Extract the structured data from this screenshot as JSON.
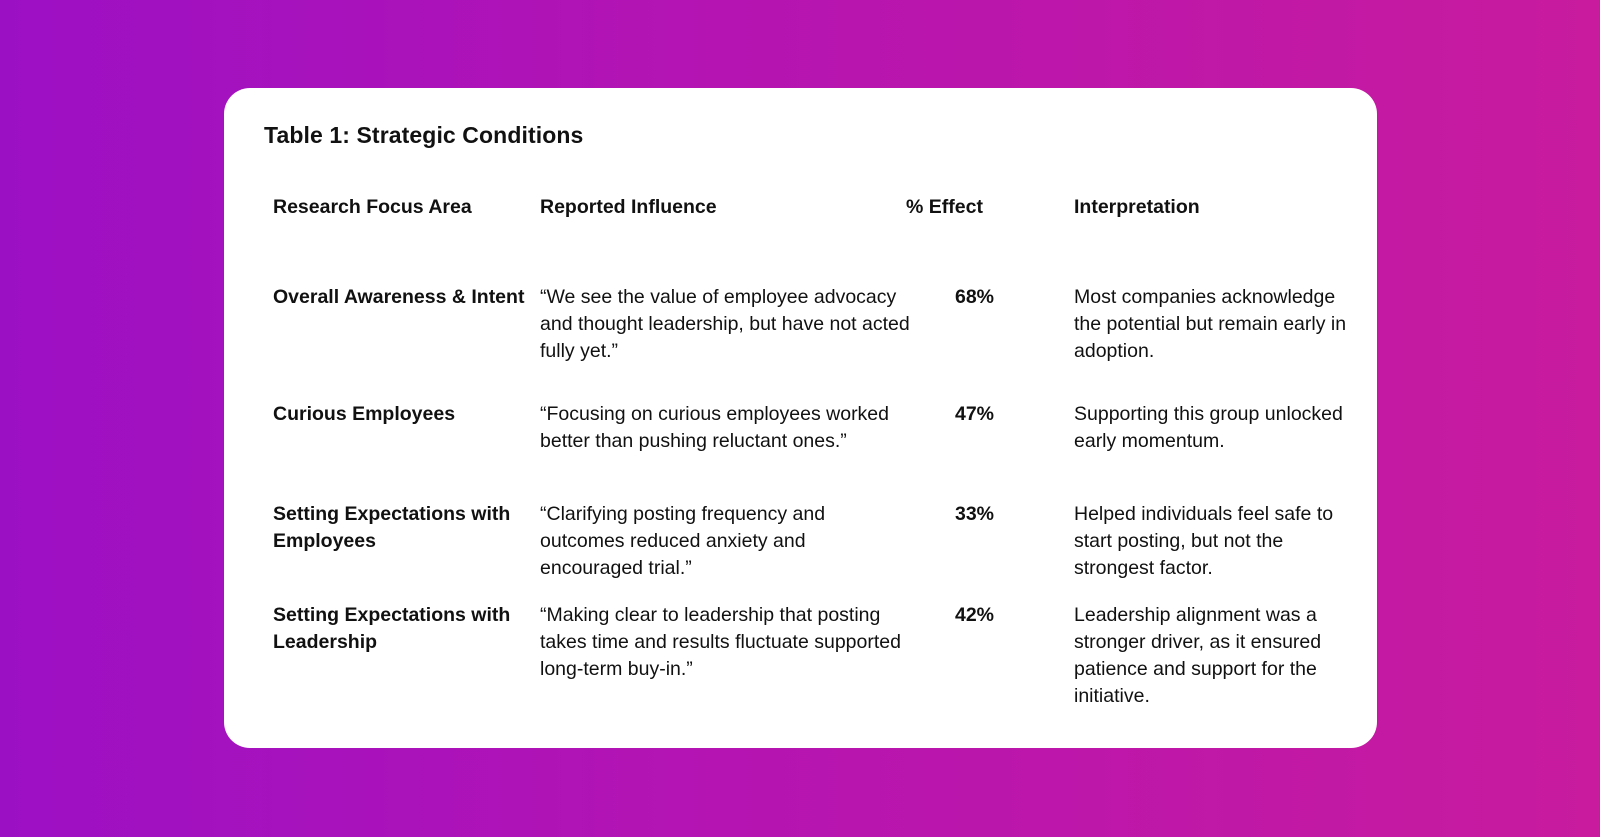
{
  "table": {
    "title": "Table 1: Strategic Conditions",
    "headers": {
      "area": "Research Focus Area",
      "influence": "Reported Influence",
      "effect": "% Effect",
      "interpretation": "Interpretation"
    },
    "rows": [
      {
        "area": "Overall Awareness & Intent",
        "influence": "“We see the value of employee advocacy and thought leadership, but have not acted fully yet.”",
        "effect": "68%",
        "interpretation": "Most companies acknowledge the potential but remain early in adoption."
      },
      {
        "area": "Curious Employees",
        "influence": "“Focusing on curious employees worked better than pushing reluctant ones.”",
        "effect": "47%",
        "interpretation": "Supporting this group unlocked early momentum."
      },
      {
        "area": "Setting Expectations with Employees",
        "influence": "“Clarifying posting frequency and outcomes reduced anxiety and encouraged trial.”",
        "effect": "33%",
        "interpretation": "Helped individuals feel safe to start posting, but not the strongest factor."
      },
      {
        "area": "Setting Expectations with Leadership",
        "influence": "“Making clear to leadership that posting takes time and results fluctuate supported long-term buy-in.”",
        "effect": "42%",
        "interpretation": "Leadership alignment was a stronger driver, as it ensured patience and support for the initiative."
      }
    ]
  }
}
